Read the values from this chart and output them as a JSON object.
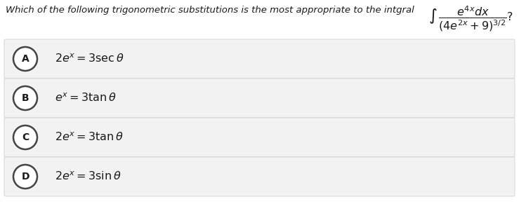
{
  "background_color": "#ffffff",
  "question_text": "Which of the following trigonometric substitutions is the most appropriate to the intgral",
  "options": [
    {
      "label": "A",
      "text": "$2e^{x} = 3\\sec\\theta$"
    },
    {
      "label": "B",
      "text": "$e^{x} = 3\\tan\\theta$"
    },
    {
      "label": "C",
      "text": "$2e^{x} = 3\\tan\\theta$"
    },
    {
      "label": "D",
      "text": "$2e^{x} = 3\\sin\\theta$"
    }
  ],
  "question_fontsize": 9.5,
  "option_fontsize": 11.5,
  "label_fontsize": 10,
  "integral_fontsize": 10,
  "text_color": "#1a1a1a",
  "option_bg_color": "#f2f2f2",
  "option_edge_color": "#d0d0d0",
  "circle_face_color": "#ffffff",
  "circle_edge_color": "#444444",
  "fig_width": 7.39,
  "fig_height": 3.01,
  "dpi": 100
}
